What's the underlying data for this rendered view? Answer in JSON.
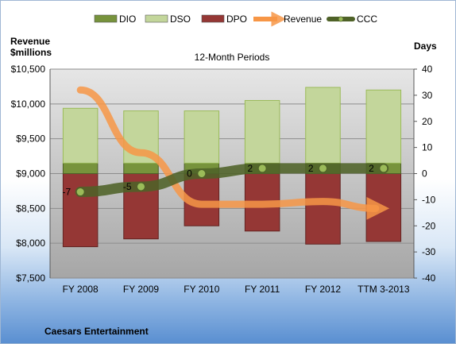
{
  "chart_data": {
    "type": "bar",
    "title": "12-Month Periods",
    "company": "Caesars Entertainment",
    "left_axis_label_line1": "Revenue",
    "left_axis_label_line2": "$millions",
    "right_axis_label": "Days",
    "categories": [
      "FY 2008",
      "FY 2009",
      "FY 2010",
      "FY 2011",
      "FY 2012",
      "TTM 3-2013"
    ],
    "left_axis": {
      "min": 7500,
      "max": 10500,
      "ticks": [
        "$7,500",
        "$8,000",
        "$8,500",
        "$9,000",
        "$9,500",
        "$10,000",
        "$10,500"
      ]
    },
    "right_axis": {
      "min": -40,
      "max": 40,
      "ticks": [
        "-40",
        "-30",
        "-20",
        "-10",
        "0",
        "10",
        "20",
        "30",
        "40"
      ]
    },
    "series": [
      {
        "name": "DIO",
        "axis": "days",
        "kind": "bar-stack",
        "color": "#77933c",
        "values": [
          4,
          4,
          4,
          4,
          4,
          4
        ]
      },
      {
        "name": "DSO",
        "axis": "days",
        "kind": "bar-stack",
        "color": "#c3d69b",
        "values": [
          21,
          20,
          20,
          24,
          29,
          28
        ]
      },
      {
        "name": "DPO",
        "axis": "days",
        "kind": "bar-negative",
        "color": "#953735",
        "values": [
          -28,
          -25,
          -20,
          -22,
          -27,
          -26
        ]
      },
      {
        "name": "Revenue",
        "axis": "revenue",
        "kind": "line-arrow",
        "color": "#f79646",
        "values": [
          10200,
          9300,
          8560,
          8560,
          8600,
          8500
        ]
      },
      {
        "name": "CCC",
        "axis": "days",
        "kind": "line-marker",
        "color": "#4f6228",
        "values": [
          -7,
          -5,
          0,
          2,
          2,
          2
        ]
      }
    ],
    "data_labels": [
      "-7",
      "-5",
      "0",
      "2",
      "2",
      "2"
    ]
  }
}
